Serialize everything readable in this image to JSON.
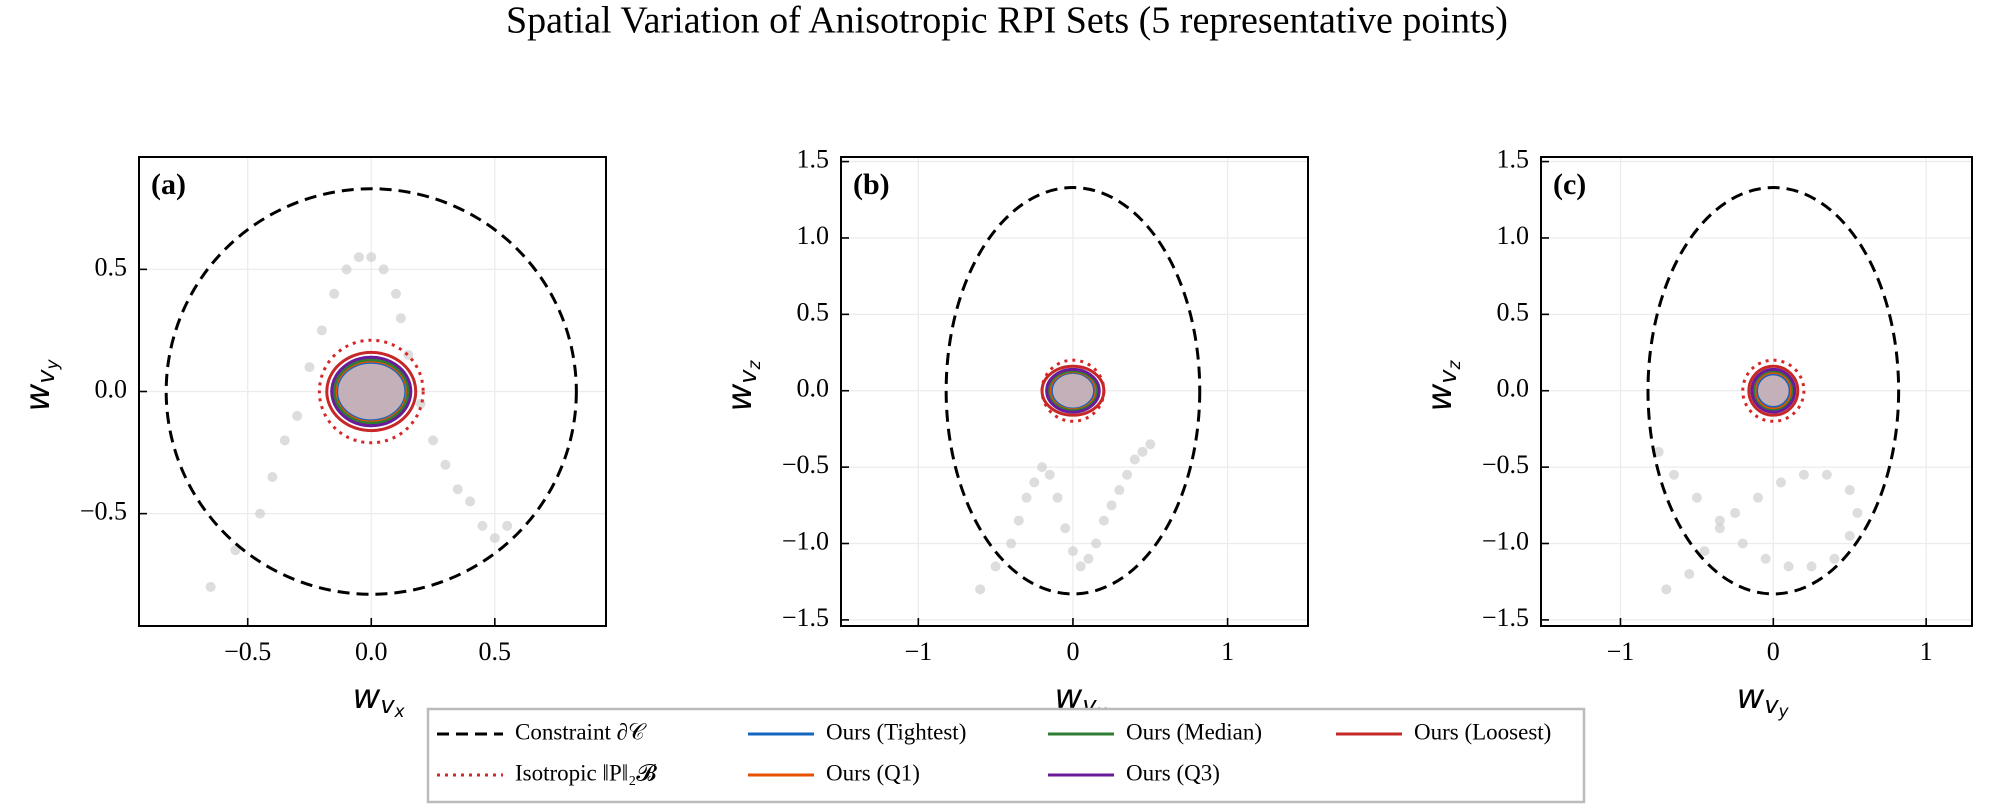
{
  "title": "Spatial Variation of Anisotropic RPI Sets (5 representative points)",
  "chart_data": [
    {
      "type": "scatter",
      "label": "(a)",
      "xlabel": [
        "w",
        "v",
        "x"
      ],
      "ylabel": [
        "w",
        "v",
        "y"
      ],
      "xlim": [
        -0.94,
        0.95
      ],
      "ylim": [
        -0.96,
        0.96
      ],
      "xticks": [
        {
          "value": -0.5,
          "label": "−0.5"
        },
        {
          "value": 0,
          "label": "0.0"
        },
        0.5
      ],
      "yticks": [
        {
          "value": -0.5,
          "label": "−0.5"
        },
        {
          "value": 0,
          "label": "0.0"
        },
        0.5
      ],
      "grid": true,
      "center": [
        0,
        0
      ],
      "points": {
        "color": "#cfcfcf",
        "x": [
          -0.65,
          -0.55,
          -0.45,
          -0.4,
          -0.35,
          -0.3,
          -0.25,
          -0.2,
          -0.15,
          -0.1,
          -0.05,
          0,
          0.05,
          0.1,
          0.12,
          0.15,
          0.2,
          0.25,
          0.3,
          0.35,
          0.4,
          0.45,
          0.5,
          0.55
        ],
        "y": [
          -0.8,
          -0.65,
          -0.5,
          -0.35,
          -0.2,
          -0.1,
          0.1,
          0.25,
          0.4,
          0.5,
          0.55,
          0.55,
          0.5,
          0.4,
          0.3,
          0.15,
          -0.05,
          -0.2,
          -0.3,
          -0.4,
          -0.45,
          -0.55,
          -0.6,
          -0.55
        ]
      },
      "series": [
        {
          "name": "Constraint ∂𝒞",
          "color": "#000000",
          "dash": "dashed",
          "rx": 0.83,
          "ry": 0.83
        },
        {
          "name": "Isotropic ‖P‖₂𝓑",
          "color": "#d62728",
          "dash": "dotted",
          "rx": 0.21,
          "ry": 0.21
        },
        {
          "name": "Ours (Tightest)",
          "color": "#1565c0",
          "dash": "solid",
          "rx": 0.14,
          "ry": 0.12
        },
        {
          "name": "Ours (Q1)",
          "color": "#e65100",
          "dash": "solid",
          "rx": 0.145,
          "ry": 0.125
        },
        {
          "name": "Ours (Median)",
          "color": "#2e7d32",
          "dash": "solid",
          "rx": 0.15,
          "ry": 0.13
        },
        {
          "name": "Ours (Q3)",
          "color": "#6a1b9a",
          "dash": "solid",
          "rx": 0.16,
          "ry": 0.14,
          "fill": "#c4b0b8"
        },
        {
          "name": "Ours (Loosest)",
          "color": "#c62828",
          "dash": "solid",
          "rx": 0.18,
          "ry": 0.16
        }
      ]
    },
    {
      "type": "scatter",
      "label": "(b)",
      "xlabel": [
        "w",
        "v",
        "x"
      ],
      "ylabel": [
        "w",
        "v",
        "z"
      ],
      "xlim": [
        -1.5,
        1.52
      ],
      "ylim": [
        -1.54,
        1.53
      ],
      "xticks": [
        {
          "value": -1,
          "label": "−1"
        },
        0,
        1
      ],
      "yticks": [
        {
          "value": -1.5,
          "label": "−1.5"
        },
        {
          "value": -1,
          "label": "−1.0"
        },
        {
          "value": -0.5,
          "label": "−0.5"
        },
        {
          "value": 0,
          "label": "0.0"
        },
        0.5,
        {
          "value": 1,
          "label": "1.0"
        },
        1.5
      ],
      "grid": true,
      "center": [
        0,
        0
      ],
      "points": {
        "color": "#cfcfcf",
        "x": [
          -0.6,
          -0.5,
          -0.4,
          -0.35,
          -0.3,
          -0.25,
          -0.2,
          -0.15,
          -0.1,
          -0.05,
          0,
          0.05,
          0.1,
          0.15,
          0.2,
          0.25,
          0.3,
          0.35,
          0.4,
          0.45,
          0.5
        ],
        "y": [
          -1.3,
          -1.15,
          -1.0,
          -0.85,
          -0.7,
          -0.6,
          -0.5,
          -0.55,
          -0.7,
          -0.9,
          -1.05,
          -1.15,
          -1.1,
          -1.0,
          -0.85,
          -0.75,
          -0.65,
          -0.55,
          -0.45,
          -0.4,
          -0.35
        ]
      },
      "series": [
        {
          "name": "Constraint ∂𝒞",
          "color": "#000000",
          "dash": "dashed",
          "rx": 0.82,
          "ry": 1.33
        },
        {
          "name": "Isotropic ‖P‖₂𝓑",
          "color": "#d62728",
          "dash": "dotted",
          "rx": 0.2,
          "ry": 0.2
        },
        {
          "name": "Ours (Tightest)",
          "color": "#1565c0",
          "dash": "solid",
          "rx": 0.14,
          "ry": 0.12
        },
        {
          "name": "Ours (Q1)",
          "color": "#e65100",
          "dash": "solid",
          "rx": 0.15,
          "ry": 0.125
        },
        {
          "name": "Ours (Median)",
          "color": "#2e7d32",
          "dash": "solid",
          "rx": 0.16,
          "ry": 0.13
        },
        {
          "name": "Ours (Q3)",
          "color": "#6a1b9a",
          "dash": "solid",
          "rx": 0.17,
          "ry": 0.14,
          "fill": "#c4b0b8"
        },
        {
          "name": "Ours (Loosest)",
          "color": "#c62828",
          "dash": "solid",
          "rx": 0.2,
          "ry": 0.16
        }
      ]
    },
    {
      "type": "scatter",
      "label": "(c)",
      "xlabel": [
        "w",
        "v",
        "y"
      ],
      "ylabel": [
        "w",
        "v",
        "z"
      ],
      "xlim": [
        -1.52,
        1.3
      ],
      "ylim": [
        -1.54,
        1.53
      ],
      "xticks": [
        {
          "value": -1,
          "label": "−1"
        },
        0,
        1
      ],
      "yticks": [
        {
          "value": -1.5,
          "label": "−1.5"
        },
        {
          "value": -1,
          "label": "−1.0"
        },
        {
          "value": -0.5,
          "label": "−0.5"
        },
        {
          "value": 0,
          "label": "0.0"
        },
        0.5,
        {
          "value": 1,
          "label": "1.0"
        },
        1.5
      ],
      "grid": true,
      "center": [
        0,
        0
      ],
      "points": {
        "color": "#cfcfcf",
        "x": [
          -0.7,
          -0.55,
          -0.45,
          -0.35,
          -0.25,
          -0.1,
          0.05,
          0.2,
          0.35,
          0.5,
          0.55,
          0.5,
          0.4,
          0.25,
          0.1,
          -0.05,
          -0.2,
          -0.35,
          -0.5,
          -0.65,
          -0.75
        ],
        "y": [
          -1.3,
          -1.2,
          -1.05,
          -0.9,
          -0.8,
          -0.7,
          -0.6,
          -0.55,
          -0.55,
          -0.65,
          -0.8,
          -0.95,
          -1.1,
          -1.15,
          -1.15,
          -1.1,
          -1.0,
          -0.85,
          -0.7,
          -0.55,
          -0.4
        ]
      },
      "series": [
        {
          "name": "Constraint ∂𝒞",
          "color": "#000000",
          "dash": "dashed",
          "rx": 0.82,
          "ry": 1.33
        },
        {
          "name": "Isotropic ‖P‖₂𝓑",
          "color": "#d62728",
          "dash": "dotted",
          "rx": 0.2,
          "ry": 0.2
        },
        {
          "name": "Ours (Tightest)",
          "color": "#1565c0",
          "dash": "solid",
          "rx": 0.11,
          "ry": 0.11
        },
        {
          "name": "Ours (Q1)",
          "color": "#e65100",
          "dash": "solid",
          "rx": 0.12,
          "ry": 0.12
        },
        {
          "name": "Ours (Median)",
          "color": "#2e7d32",
          "dash": "solid",
          "rx": 0.13,
          "ry": 0.13
        },
        {
          "name": "Ours (Q3)",
          "color": "#6a1b9a",
          "dash": "solid",
          "rx": 0.14,
          "ry": 0.14,
          "fill": "#c4b0b8"
        },
        {
          "name": "Ours (Loosest)",
          "color": "#c62828",
          "dash": "solid",
          "rx": 0.16,
          "ry": 0.16
        }
      ]
    }
  ]
}
